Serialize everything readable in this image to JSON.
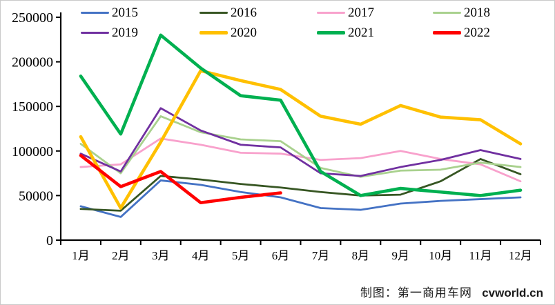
{
  "chart_data": {
    "type": "line",
    "title": "",
    "xlabel": "",
    "ylabel": "",
    "categories": [
      "1月",
      "2月",
      "3月",
      "4月",
      "5月",
      "6月",
      "7月",
      "8月",
      "9月",
      "10月",
      "11月",
      "12月"
    ],
    "y_ticks": [
      0,
      50000,
      100000,
      150000,
      200000,
      250000
    ],
    "ylim": [
      0,
      250000
    ],
    "grid": false,
    "legend_position": "top",
    "series": [
      {
        "name": "2015",
        "color": "#4472C4",
        "thick": false,
        "values": [
          38000,
          26000,
          67000,
          62000,
          54000,
          48000,
          36000,
          34000,
          41000,
          44000,
          46000,
          48000
        ]
      },
      {
        "name": "2016",
        "color": "#375623",
        "thick": false,
        "values": [
          35000,
          33000,
          72000,
          68000,
          63000,
          59000,
          54000,
          50000,
          51000,
          66000,
          91000,
          74000
        ]
      },
      {
        "name": "2017",
        "color": "#F8A1CC",
        "thick": false,
        "values": [
          82000,
          85000,
          114000,
          107000,
          98000,
          97000,
          90000,
          92000,
          100000,
          91000,
          85000,
          66000
        ]
      },
      {
        "name": "2018",
        "color": "#A9D18E",
        "thick": false,
        "values": [
          108000,
          75000,
          139000,
          121000,
          113000,
          111000,
          81000,
          71000,
          78000,
          79000,
          87000,
          82000
        ]
      },
      {
        "name": "2019",
        "color": "#7030A0",
        "thick": false,
        "values": [
          97000,
          77000,
          148000,
          123000,
          107000,
          104000,
          75000,
          72000,
          82000,
          90000,
          101000,
          91000
        ]
      },
      {
        "name": "2020",
        "color": "#FFC000",
        "thick": true,
        "values": [
          116000,
          36000,
          110000,
          190000,
          179000,
          169000,
          139000,
          130000,
          151000,
          138000,
          135000,
          108000
        ]
      },
      {
        "name": "2021",
        "color": "#00B050",
        "thick": true,
        "values": [
          184000,
          119000,
          230000,
          193000,
          162000,
          157000,
          77000,
          50000,
          58000,
          54000,
          50000,
          56000
        ]
      },
      {
        "name": "2022",
        "color": "#FF0000",
        "thick": true,
        "values": [
          95000,
          60000,
          77000,
          42000,
          48000,
          53000,
          null,
          null,
          null,
          null,
          null,
          null
        ]
      }
    ]
  },
  "watermark": {
    "credit": "制图：第一商用车网",
    "site": "cvworld.cn"
  }
}
